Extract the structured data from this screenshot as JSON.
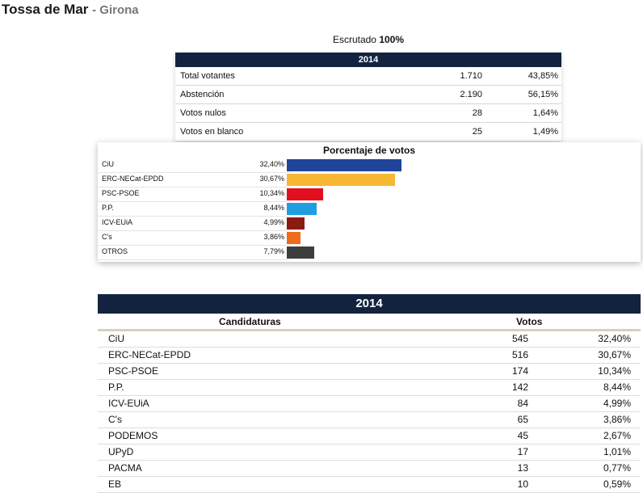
{
  "header": {
    "town": "Tossa de Mar",
    "province": "- Girona"
  },
  "scrutiny": {
    "label": "Escrutado",
    "value": "100%"
  },
  "summary": {
    "year": "2014",
    "rows": [
      {
        "label": "Total votantes",
        "value": "1.710",
        "pct": "43,85%"
      },
      {
        "label": "Abstención",
        "value": "2.190",
        "pct": "56,15%"
      },
      {
        "label": "Votos nulos",
        "value": "28",
        "pct": "1,64%"
      },
      {
        "label": "Votos en blanco",
        "value": "25",
        "pct": "1,49%"
      }
    ]
  },
  "chart_data": {
    "type": "bar",
    "title": "Porcentaje de votos",
    "categories": [
      "CiU",
      "ERC-NECat-EPDD",
      "PSC-PSOE",
      "P.P.",
      "ICV-EUiA",
      "C's",
      "OTROS"
    ],
    "values": [
      32.4,
      30.67,
      10.34,
      8.44,
      4.99,
      3.86,
      7.79
    ],
    "labels": [
      "32,40%",
      "30,67%",
      "10,34%",
      "8,44%",
      "4,99%",
      "3,86%",
      "7,79%"
    ],
    "colors": [
      "#1f4499",
      "#f7b733",
      "#e01020",
      "#1e9ee0",
      "#8a1a12",
      "#f26a1b",
      "#3d3d3a"
    ],
    "xlim": [
      0,
      45
    ]
  },
  "results": {
    "year": "2014",
    "col_candidates": "Candidaturas",
    "col_votes": "Votos",
    "rows": [
      {
        "name": "CiU",
        "votes": "545",
        "pct": "32,40%"
      },
      {
        "name": "ERC-NECat-EPDD",
        "votes": "516",
        "pct": "30,67%"
      },
      {
        "name": "PSC-PSOE",
        "votes": "174",
        "pct": "10,34%"
      },
      {
        "name": "P.P.",
        "votes": "142",
        "pct": "8,44%"
      },
      {
        "name": "ICV-EUiA",
        "votes": "84",
        "pct": "4,99%"
      },
      {
        "name": "C's",
        "votes": "65",
        "pct": "3,86%"
      },
      {
        "name": "PODEMOS",
        "votes": "45",
        "pct": "2,67%"
      },
      {
        "name": "UPyD",
        "votes": "17",
        "pct": "1,01%"
      },
      {
        "name": "PACMA",
        "votes": "13",
        "pct": "0,77%"
      },
      {
        "name": "EB",
        "votes": "10",
        "pct": "0,59%"
      }
    ]
  }
}
